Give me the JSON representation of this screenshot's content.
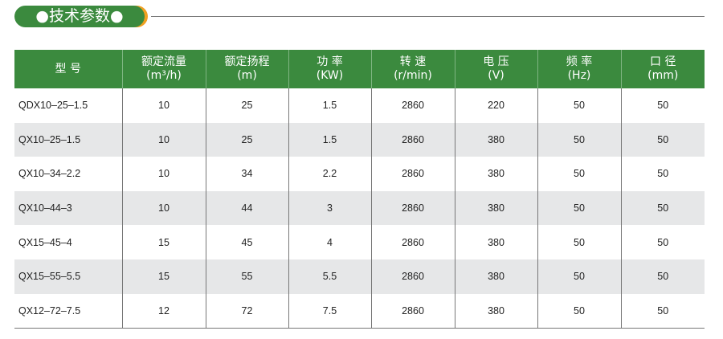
{
  "title": "●技术参数●",
  "colors": {
    "header_green": "#3b8a3e",
    "accent_orange": "#f0a020",
    "alt_row": "#e6e7e8"
  },
  "table": {
    "headers": [
      [
        "型  号",
        ""
      ],
      [
        "额定流量",
        "(m³/h)"
      ],
      [
        "额定扬程",
        "(m)"
      ],
      [
        "功 率",
        "(KW)"
      ],
      [
        "转 速",
        "(r/min)"
      ],
      [
        "电 压",
        "(V)"
      ],
      [
        "频 率",
        "(Hz)"
      ],
      [
        "口 径",
        "(mm)"
      ]
    ],
    "rows": [
      [
        "QDX10–25–1.5",
        "10",
        "25",
        "1.5",
        "2860",
        "220",
        "50",
        "50"
      ],
      [
        "QX10–25–1.5",
        "10",
        "25",
        "1.5",
        "2860",
        "380",
        "50",
        "50"
      ],
      [
        "QX10–34–2.2",
        "10",
        "34",
        "2.2",
        "2860",
        "380",
        "50",
        "50"
      ],
      [
        "QX10–44–3",
        "10",
        "44",
        "3",
        "2860",
        "380",
        "50",
        "50"
      ],
      [
        "QX15–45–4",
        "15",
        "45",
        "4",
        "2860",
        "380",
        "50",
        "50"
      ],
      [
        "QX15–55–5.5",
        "15",
        "55",
        "5.5",
        "2860",
        "380",
        "50",
        "50"
      ],
      [
        "QX12–72–7.5",
        "12",
        "72",
        "7.5",
        "2860",
        "380",
        "50",
        "50"
      ]
    ]
  }
}
